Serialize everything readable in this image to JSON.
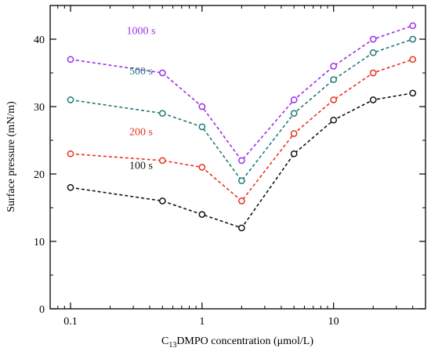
{
  "chart_data": {
    "type": "line",
    "xscale": "log",
    "xlim": [
      0.07,
      50
    ],
    "ylim": [
      0,
      45
    ],
    "xticks": [
      {
        "value": 0.1,
        "label": "0.1"
      },
      {
        "value": 1,
        "label": "1"
      },
      {
        "value": 10,
        "label": "10"
      }
    ],
    "yticks": [
      {
        "value": 0,
        "label": "0"
      },
      {
        "value": 10,
        "label": "10"
      },
      {
        "value": 20,
        "label": "20"
      },
      {
        "value": 30,
        "label": "30"
      },
      {
        "value": 40,
        "label": "40"
      }
    ],
    "xlabel": {
      "prefix": "C",
      "sub": "13",
      "suffix": "DMPO concentration (μmol/L)"
    },
    "ylabel": "Surface pressure (mN/m)",
    "x": [
      0.1,
      0.5,
      1,
      2,
      5,
      10,
      20,
      40
    ],
    "series": [
      {
        "name": "1000 s",
        "color": "#9b30e6",
        "values": [
          37,
          35,
          30,
          22,
          31,
          36,
          40,
          42
        ]
      },
      {
        "name": "500 s",
        "color": "#1e7b78",
        "values": [
          31,
          29,
          27,
          19,
          29,
          34,
          38,
          40
        ]
      },
      {
        "name": "200 s",
        "color": "#e8321e",
        "values": [
          23,
          22,
          21,
          16,
          26,
          31,
          35,
          37
        ]
      },
      {
        "name": "100 s",
        "color": "#111111",
        "values": [
          18,
          16,
          14,
          12,
          23,
          28,
          31,
          32
        ]
      }
    ],
    "marker": "open-circle",
    "line_style": "dashed",
    "grid": false
  }
}
